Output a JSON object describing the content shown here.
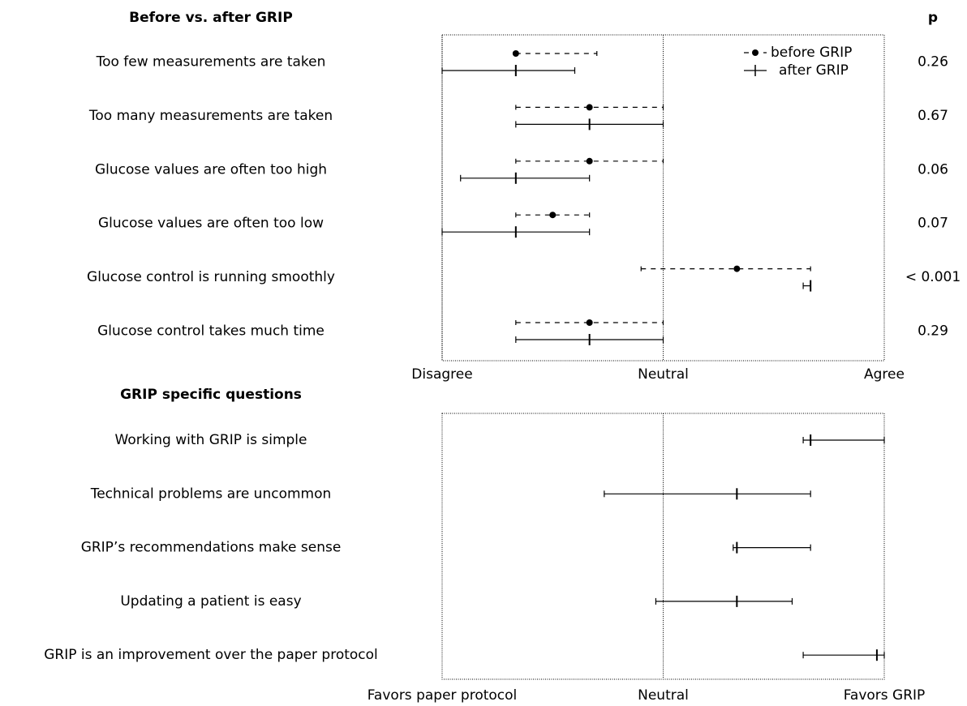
{
  "chart_data": [
    {
      "type": "interval",
      "title": "Before vs. after GRIP",
      "categories": [
        "Too few measurements are taken",
        "Too many measurements are taken",
        "Glucose values are often too high",
        "Glucose values are often too low",
        "Glucose control is running smoothly",
        "Glucose control takes much time"
      ],
      "series": [
        {
          "name": "before GRIP",
          "color": "#000000",
          "line": "dashed",
          "values": [
            2,
            3,
            3,
            2.5,
            5,
            3
          ],
          "lower": [
            2,
            2,
            2,
            2,
            3.7,
            2
          ],
          "upper": [
            3.1,
            4,
            4,
            3,
            6,
            4
          ]
        },
        {
          "name": "after GRIP",
          "color": "#000000",
          "line": "solid",
          "values": [
            2,
            3,
            2,
            2,
            6,
            3
          ],
          "lower": [
            1,
            2,
            1.25,
            1,
            5.9,
            2
          ],
          "upper": [
            2.8,
            4,
            3,
            3,
            6,
            4
          ]
        }
      ],
      "xlim": [
        1,
        7
      ],
      "xticks": [
        {
          "value": 1,
          "label": "Disagree"
        },
        {
          "value": 4,
          "label": "Neutral"
        },
        {
          "value": 7,
          "label": "Agree"
        }
      ],
      "legend": "upper right",
      "p_header": "p",
      "p_values": [
        "0.26",
        "0.67",
        "0.06",
        "0.07",
        "< 0.001",
        "0.29"
      ]
    },
    {
      "type": "interval",
      "title": "GRIP specific questions",
      "categories": [
        "Working with GRIP is simple",
        "Technical problems are uncommon",
        "GRIP’s recommendations make sense",
        "Updating a patient is easy",
        "GRIP is an improvement over the paper protocol"
      ],
      "series": [
        {
          "color": "#000000",
          "line": "solid",
          "values": [
            6,
            5,
            5,
            5,
            6.9
          ],
          "lower": [
            5.9,
            3.2,
            4.95,
            3.9,
            5.9
          ],
          "upper": [
            7,
            6,
            6,
            5.75,
            7
          ]
        }
      ],
      "xlim": [
        1,
        7
      ],
      "xticks": [
        {
          "value": 1,
          "label": "Favors paper protocol"
        },
        {
          "value": 4,
          "label": "Neutral"
        },
        {
          "value": 7,
          "label": "Favors GRIP"
        }
      ]
    }
  ]
}
